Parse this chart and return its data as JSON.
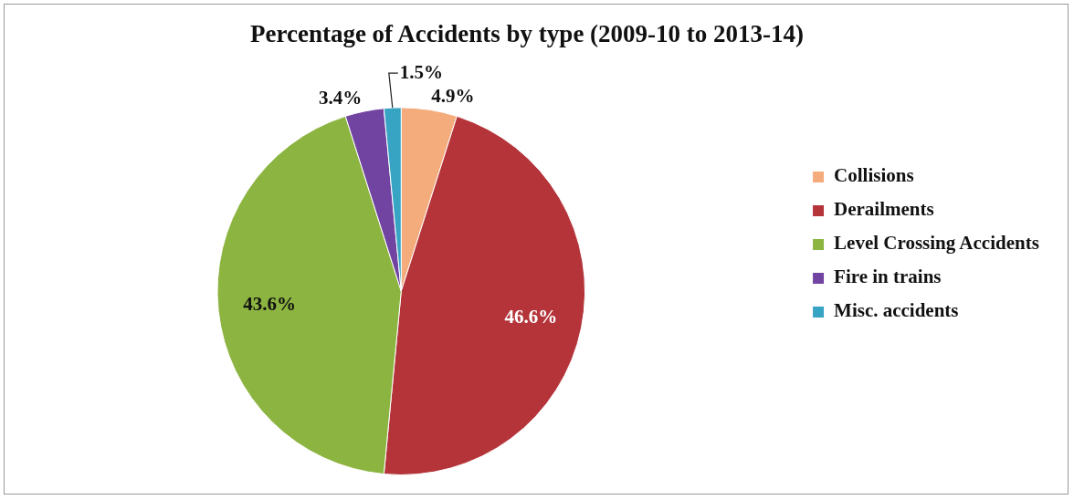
{
  "chart_data": {
    "type": "pie",
    "title": "Percentage of Accidents by type (2009-10 to 2013-14)",
    "categories": [
      "Collisions",
      "Derailments",
      "Level Crossing Accidents",
      "Fire in trains",
      "Misc. accidents"
    ],
    "values": [
      4.9,
      46.6,
      43.6,
      3.4,
      1.5
    ],
    "colors": [
      "#f4ac7c",
      "#b4343a",
      "#8cb440",
      "#7044a0",
      "#38a4c4"
    ],
    "value_labels": [
      "4.9%",
      "46.6%",
      "43.6%",
      "3.4%",
      "1.5%"
    ],
    "legend": "right"
  }
}
